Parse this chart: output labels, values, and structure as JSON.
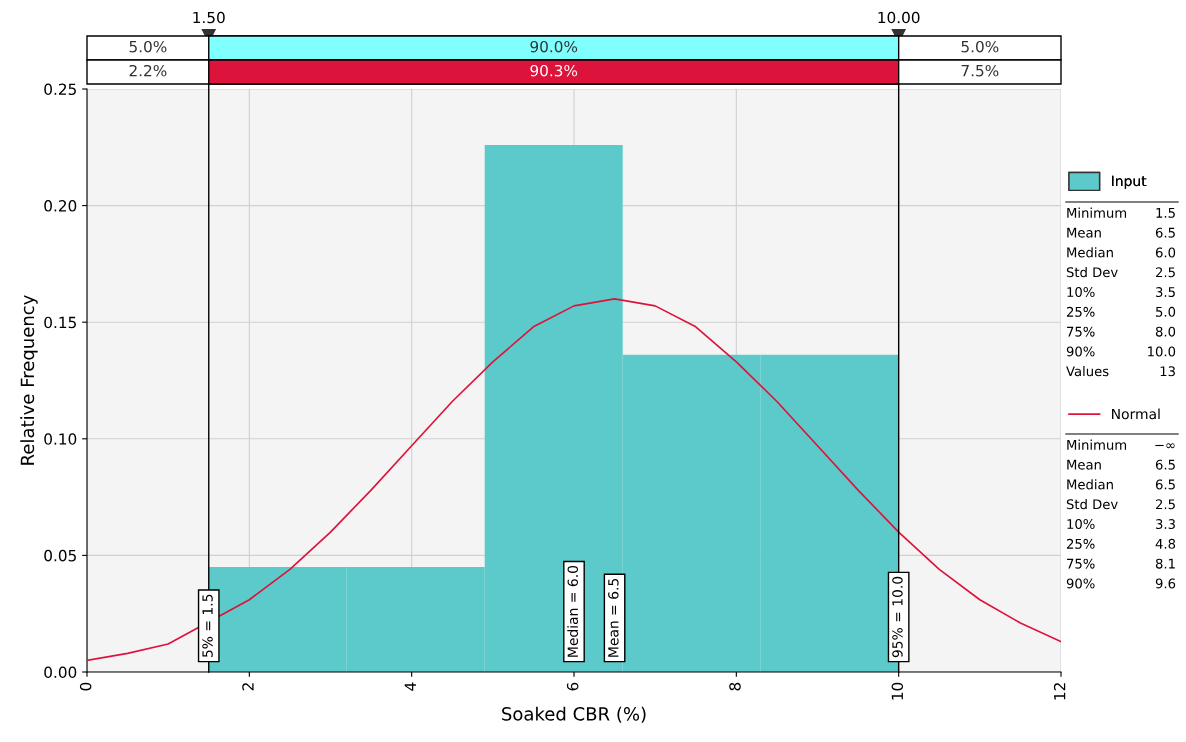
{
  "chart_data": {
    "type": "histogram",
    "xlabel": "Soaked CBR (%)",
    "ylabel": "Relative Frequency",
    "bins": [
      1.5,
      3.2,
      4.9,
      6.6,
      8.3,
      10.0
    ],
    "series": [
      {
        "name": "Input",
        "color": "#5ccaca",
        "values": [
          0.045,
          0.045,
          0.226,
          0.136,
          0.136
        ]
      },
      {
        "name": "Normal",
        "type": "line",
        "color": "#dc143c",
        "x": [
          0,
          0.5,
          1,
          2,
          2.5,
          3,
          3.5,
          4,
          4.5,
          5,
          5.5,
          6,
          6.5,
          7,
          7.5,
          8,
          8.5,
          9,
          9.5,
          10,
          10.5,
          11,
          11.5,
          12
        ],
        "values": [
          0.005,
          0.008,
          0.012,
          0.031,
          0.044,
          0.06,
          0.078,
          0.097,
          0.116,
          0.133,
          0.148,
          0.157,
          0.16,
          0.157,
          0.148,
          0.133,
          0.116,
          0.097,
          0.078,
          0.06,
          0.044,
          0.031,
          0.021,
          0.013
        ]
      }
    ],
    "xlim": [
      0,
      12
    ],
    "xticks": [
      0,
      2,
      4,
      6,
      8,
      10,
      12
    ],
    "ylim": [
      0,
      0.25
    ],
    "yticks": [
      {
        "value": 0,
        "label": "0.00"
      },
      {
        "value": 0.05,
        "label": "0.05"
      },
      {
        "value": 0.1,
        "label": "0.10"
      },
      {
        "value": 0.15,
        "label": "0.15"
      },
      {
        "value": 0.2,
        "label": "0.20"
      },
      {
        "value": 0.25,
        "label": "0.25"
      }
    ],
    "grid": true,
    "legend": "right",
    "ref_lines": [
      {
        "axis": "x",
        "value": 1.5,
        "label": "1.50",
        "color": "#000000"
      },
      {
        "axis": "x",
        "value": 10.0,
        "label": "10.00",
        "color": "#000000"
      }
    ],
    "annotations": [
      "5.0%",
      "90.0%",
      "5.0%",
      "2.2%",
      "90.3%",
      "7.5%",
      {
        "text": "5% = 1.5",
        "x": 1.5,
        "y": 0
      },
      {
        "text": "Median = 6.0",
        "x": 6.0,
        "y": 0
      },
      {
        "text": "Mean = 6.5",
        "x": 6.5,
        "y": 0
      },
      {
        "text": "95% = 10.0",
        "x": 10.0,
        "y": 0
      },
      "Minimum 1.5",
      "Mean 6.5",
      "Median 6.0",
      "Std Dev 2.5",
      "10% 3.5",
      "25% 5.0",
      "75% 8.0",
      "90% 10.0",
      "Values 13",
      "Minimum −∞",
      "Mean 6.5",
      "Median 6.5",
      "Std Dev 2.5",
      "10% 3.3",
      "25% 4.8",
      "75% 8.1",
      "90% 9.6"
    ]
  }
}
